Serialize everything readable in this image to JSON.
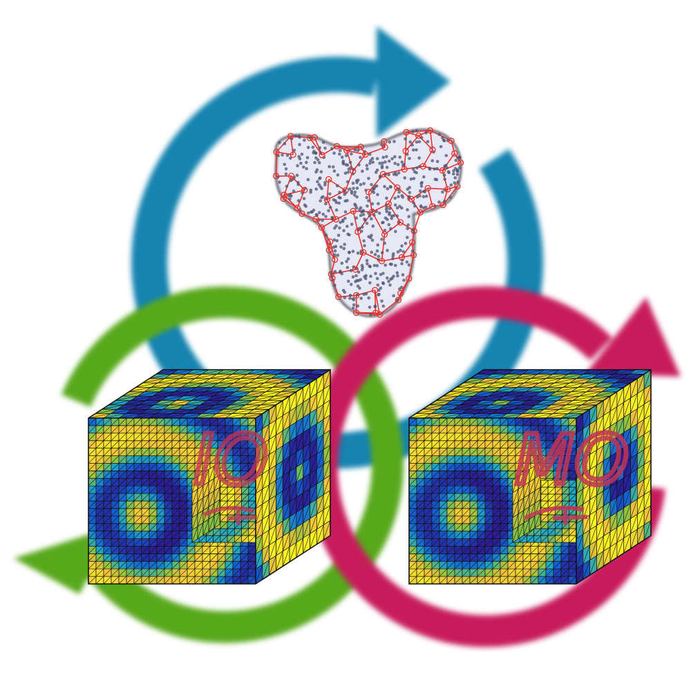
{
  "colors": {
    "background": "#ffffff",
    "cycle_top": "#1683b0",
    "cycle_left": "#58a81c",
    "cycle_right": "#c71c5b",
    "mesh_edge": "#e8312b",
    "mesh_fill": "#e7e8f5",
    "mesh_point": "#4c5470",
    "field_palette": [
      "#2a1f95",
      "#1560d0",
      "#20a6c6",
      "#8fc43f",
      "#f3c23a",
      "#f8f523"
    ],
    "grid_line": "#111111",
    "handwriting": "#c23656"
  },
  "icons": [
    "cycle-arrow-top-icon",
    "cycle-arrow-left-icon",
    "cycle-arrow-right-icon",
    "trefoil-mesh-icon",
    "cube-field-icon"
  ],
  "handwriting": {
    "left": "IO",
    "right": "MO"
  }
}
